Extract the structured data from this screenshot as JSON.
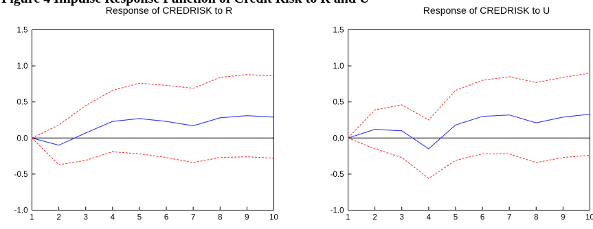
{
  "caption": "Figure 4 Impulse Response Function of Credit Risk to R and U",
  "chart_data": [
    {
      "type": "line",
      "title": "Response of CREDRISK to R",
      "x": [
        1,
        2,
        3,
        4,
        5,
        6,
        7,
        8,
        9,
        10
      ],
      "xticks": [
        "1",
        "2",
        "3",
        "4",
        "5",
        "6",
        "7",
        "8",
        "9",
        "10"
      ],
      "yticks": [
        "1.5",
        "1.0",
        "0.5",
        "0.0",
        "-0.5",
        "-1.0"
      ],
      "ylim": [
        -1.0,
        1.5
      ],
      "xlim": [
        1,
        10
      ],
      "zero_line": true,
      "grid": false,
      "series": [
        {
          "role": "response",
          "color": "#3333ff",
          "dashed": false,
          "values": [
            0.0,
            -0.1,
            0.07,
            0.23,
            0.27,
            0.23,
            0.17,
            0.28,
            0.31,
            0.29
          ]
        },
        {
          "role": "upper",
          "color": "#ff3333",
          "dashed": true,
          "values": [
            0.0,
            0.18,
            0.45,
            0.66,
            0.76,
            0.73,
            0.69,
            0.84,
            0.88,
            0.86
          ]
        },
        {
          "role": "lower",
          "color": "#ff3333",
          "dashed": true,
          "values": [
            0.0,
            -0.37,
            -0.31,
            -0.19,
            -0.22,
            -0.27,
            -0.34,
            -0.27,
            -0.26,
            -0.28
          ]
        }
      ]
    },
    {
      "type": "line",
      "title": "Response of CREDRISK to U",
      "x": [
        1,
        2,
        3,
        4,
        5,
        6,
        7,
        8,
        9,
        10
      ],
      "xticks": [
        "1",
        "2",
        "3",
        "4",
        "5",
        "6",
        "7",
        "8",
        "9",
        "10"
      ],
      "yticks": [
        "1.5",
        "1.0",
        "0.5",
        "0.0",
        "-0.5",
        "-1.0"
      ],
      "ylim": [
        -1.0,
        1.5
      ],
      "xlim": [
        1,
        10
      ],
      "zero_line": true,
      "grid": false,
      "series": [
        {
          "role": "response",
          "color": "#3333ff",
          "dashed": false,
          "values": [
            0.0,
            0.12,
            0.1,
            -0.15,
            0.18,
            0.3,
            0.32,
            0.21,
            0.29,
            0.33
          ]
        },
        {
          "role": "upper",
          "color": "#ff3333",
          "dashed": true,
          "values": [
            0.0,
            0.39,
            0.46,
            0.25,
            0.66,
            0.8,
            0.85,
            0.77,
            0.84,
            0.9
          ]
        },
        {
          "role": "lower",
          "color": "#ff3333",
          "dashed": true,
          "values": [
            0.0,
            -0.15,
            -0.27,
            -0.56,
            -0.31,
            -0.22,
            -0.22,
            -0.34,
            -0.27,
            -0.24
          ]
        }
      ]
    }
  ]
}
